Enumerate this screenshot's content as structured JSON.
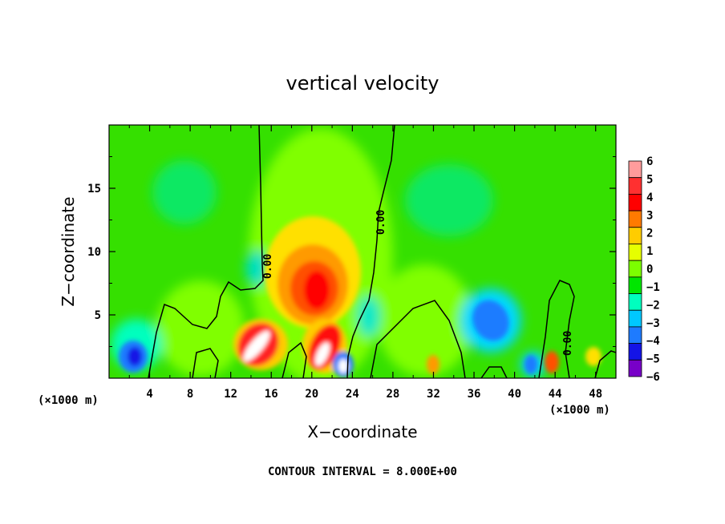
{
  "chart_data": {
    "type": "heatmap",
    "title": "vertical velocity",
    "xlabel": "X−coordinate",
    "ylabel": "Z−coordinate",
    "xlim": [
      0,
      50
    ],
    "ylim": [
      0,
      20
    ],
    "x_ticks": [
      4,
      8,
      12,
      16,
      20,
      24,
      28,
      32,
      36,
      40,
      44,
      48
    ],
    "y_ticks": [
      5,
      10,
      15
    ],
    "x_unit_label": "(×1000 m)",
    "colorbar": {
      "levels": [
        6,
        5,
        4,
        3,
        2,
        1,
        0,
        "−1",
        "−2",
        "−3",
        "−4",
        "−5",
        "−6"
      ],
      "colors": [
        "#ff9c9c",
        "#ff3030",
        "#ff0000",
        "#ff7a00",
        "#ffcc00",
        "#e6ff00",
        "#7cff00",
        "#00e600",
        "#00ffbe",
        "#00c8ff",
        "#1e7bff",
        "#1414e6",
        "#7800c8"
      ]
    },
    "contour_label": "0.00",
    "annotation": "CONTOUR INTERVAL = 8.000E+00",
    "features": [
      {
        "x": 2.5,
        "z": 2.0,
        "w": -4
      },
      {
        "x": 14.0,
        "z": 2.5,
        "w": 5
      },
      {
        "x": 20.5,
        "z": 7.5,
        "w": 4
      },
      {
        "x": 21.0,
        "z": 2.5,
        "w": 6
      },
      {
        "x": 23.0,
        "z": 1.0,
        "w": -6
      },
      {
        "x": 37.5,
        "z": 4.5,
        "w": -3
      },
      {
        "x": 43.5,
        "z": 1.2,
        "w": 4
      },
      {
        "x": 41.5,
        "z": 1.0,
        "w": -3
      }
    ]
  }
}
